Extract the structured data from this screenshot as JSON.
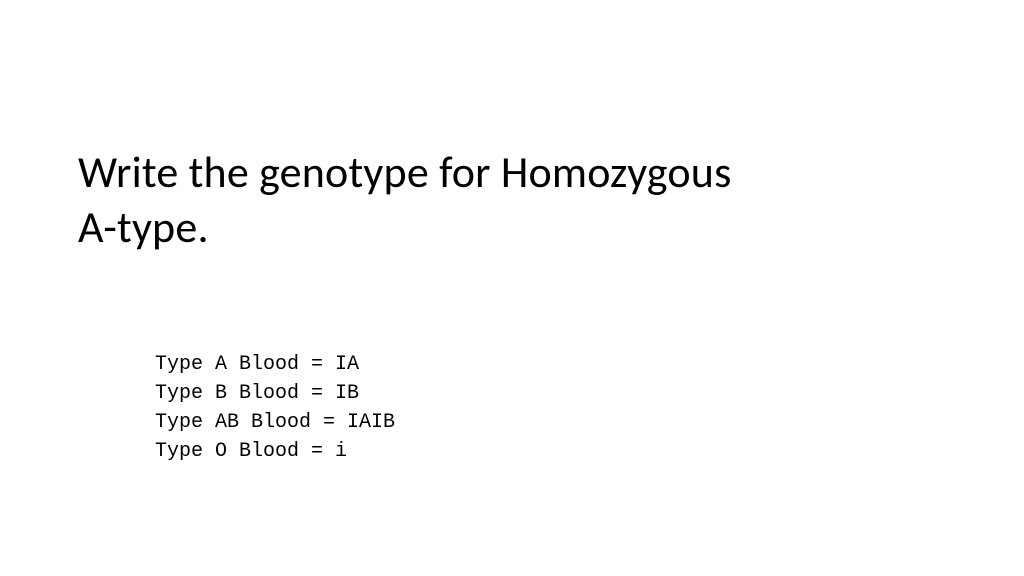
{
  "slide": {
    "title_line1": "Write the genotype for Homozygous",
    "title_line2": "A-type.",
    "title_fontsize": 44,
    "title_color": "#000000",
    "content_fontsize": 20,
    "content_color": "#000000",
    "content_font": "Courier New",
    "background_color": "#ffffff",
    "lines": [
      "Type A Blood = IA",
      "Type B Blood = IB",
      "Type AB Blood = IAIB",
      "Type O Blood = i"
    ]
  }
}
